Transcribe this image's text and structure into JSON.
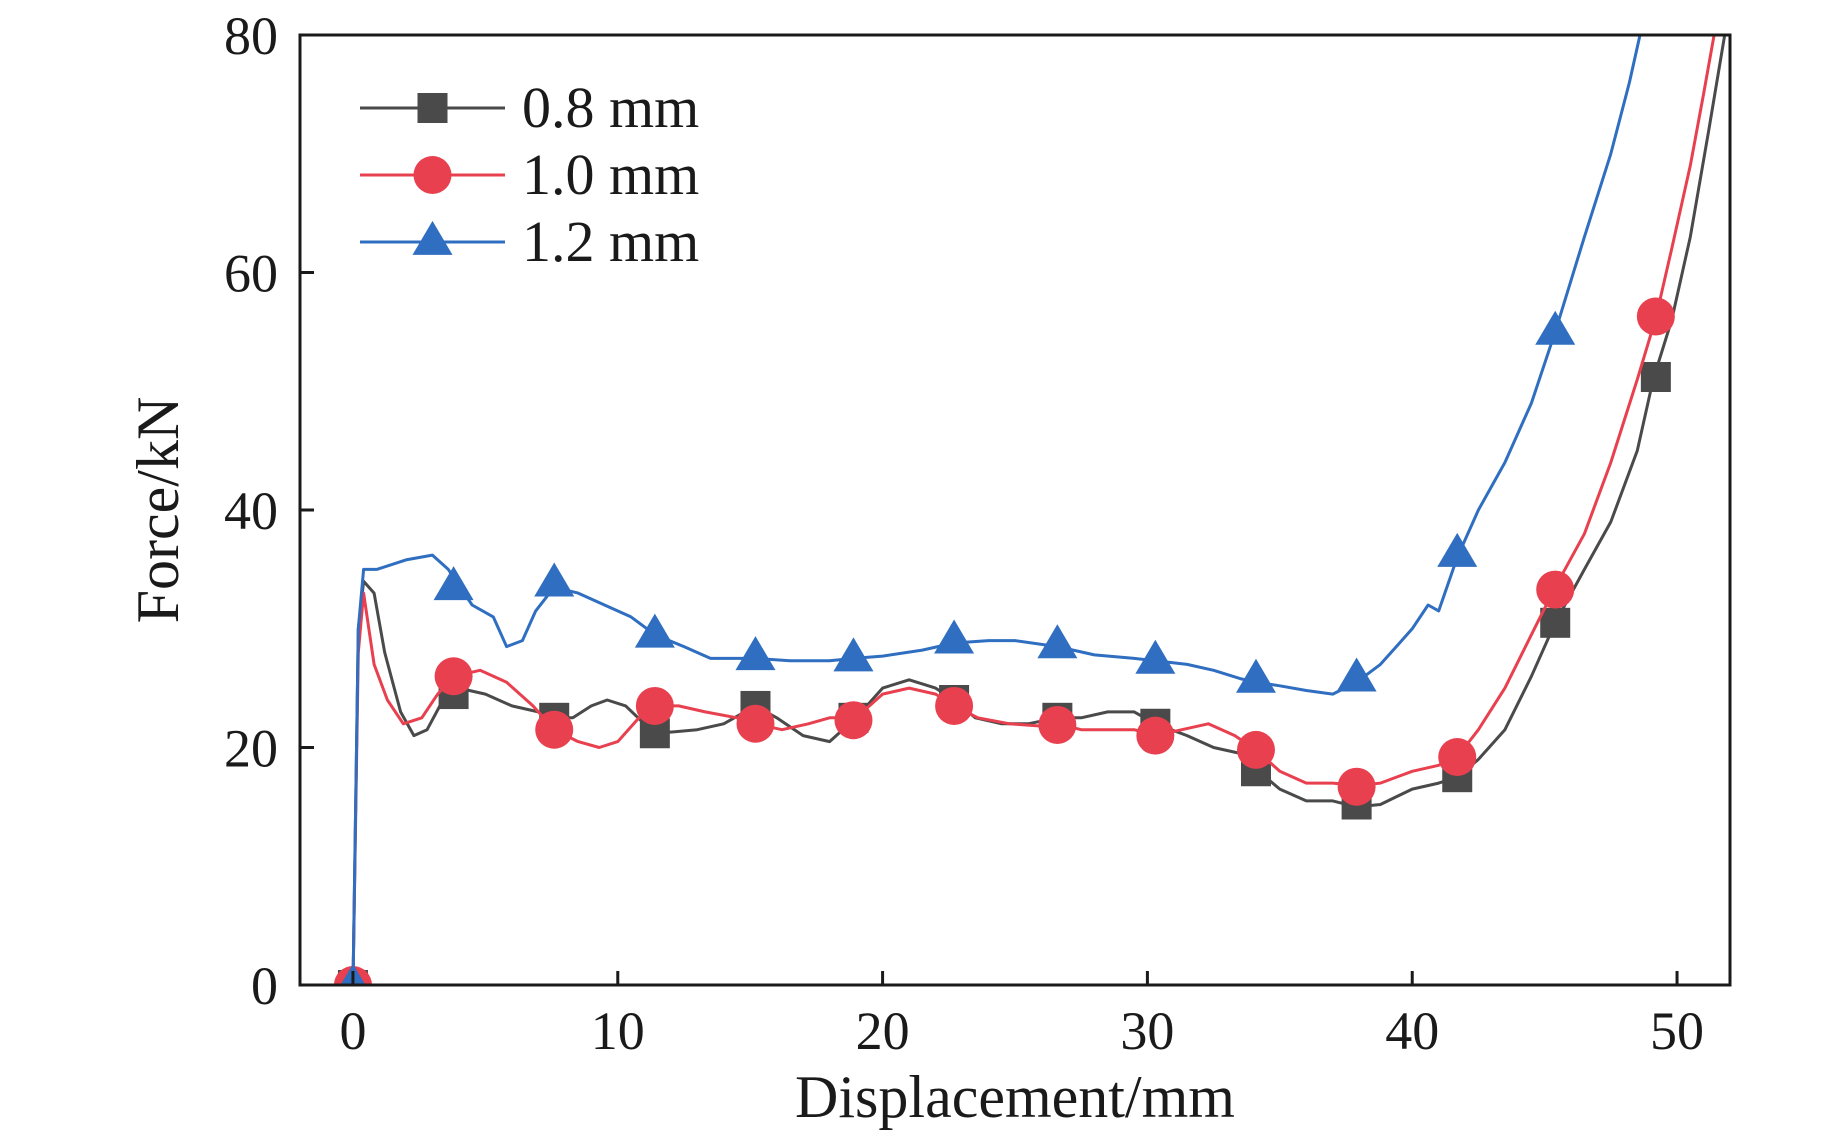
{
  "chart_data": {
    "type": "line",
    "title": "",
    "xlabel": "Displacement/mm",
    "ylabel": "Force/kN",
    "xlim": [
      -2,
      52
    ],
    "ylim": [
      0,
      80
    ],
    "xticks": [
      "0",
      "10",
      "20",
      "30",
      "40",
      "50"
    ],
    "yticks": [
      "0",
      "20",
      "40",
      "60",
      "80"
    ],
    "grid": false,
    "legend_position": "top-left",
    "series": [
      {
        "name": "0.8 mm",
        "color": "#4a4a4a",
        "marker": "square",
        "line": [
          [
            0,
            0
          ],
          [
            0.2,
            30
          ],
          [
            0.4,
            34
          ],
          [
            0.8,
            33
          ],
          [
            1.2,
            28
          ],
          [
            1.8,
            23
          ],
          [
            2.3,
            21
          ],
          [
            2.8,
            21.5
          ],
          [
            3.4,
            24
          ],
          [
            4.0,
            25
          ],
          [
            5.0,
            24.5
          ],
          [
            6.0,
            23.5
          ],
          [
            7.0,
            23
          ],
          [
            7.6,
            22.5
          ],
          [
            8.3,
            22.5
          ],
          [
            9.0,
            23.5
          ],
          [
            9.6,
            24
          ],
          [
            10.3,
            23.5
          ],
          [
            11.0,
            22
          ],
          [
            11.4,
            21.5
          ],
          [
            12.0,
            21.3
          ],
          [
            13.0,
            21.5
          ],
          [
            14.0,
            22
          ],
          [
            15.2,
            23.5
          ],
          [
            16.0,
            22.5
          ],
          [
            17.0,
            21
          ],
          [
            18.0,
            20.5
          ],
          [
            19.0,
            22.5
          ],
          [
            20.0,
            25
          ],
          [
            21.0,
            25.7
          ],
          [
            22.0,
            25
          ],
          [
            22.7,
            24
          ],
          [
            23.5,
            22.5
          ],
          [
            24.5,
            22
          ],
          [
            25.5,
            22
          ],
          [
            26.6,
            22.5
          ],
          [
            27.5,
            22.5
          ],
          [
            28.5,
            23
          ],
          [
            29.5,
            23
          ],
          [
            30.3,
            22
          ],
          [
            31.5,
            21
          ],
          [
            32.5,
            20
          ],
          [
            33.5,
            19.5
          ],
          [
            34.2,
            18
          ],
          [
            35.0,
            16.5
          ],
          [
            36.0,
            15.5
          ],
          [
            37.0,
            15.5
          ],
          [
            37.9,
            15
          ],
          [
            38.8,
            15.2
          ],
          [
            40.0,
            16.5
          ],
          [
            41.0,
            17
          ],
          [
            41.7,
            17.5
          ],
          [
            42.5,
            19
          ],
          [
            43.5,
            21.5
          ],
          [
            44.5,
            26
          ],
          [
            45.4,
            30.5
          ],
          [
            46.5,
            35
          ],
          [
            47.5,
            39
          ],
          [
            48.5,
            45
          ],
          [
            49.1,
            51
          ],
          [
            49.8,
            56
          ],
          [
            50.5,
            63
          ],
          [
            51.2,
            72
          ],
          [
            51.8,
            80
          ]
        ],
        "markers": [
          [
            0,
            0
          ],
          [
            3.8,
            24.5
          ],
          [
            7.6,
            22.5
          ],
          [
            11.4,
            21.2
          ],
          [
            15.2,
            23.5
          ],
          [
            18.9,
            22.5
          ],
          [
            22.7,
            24
          ],
          [
            26.6,
            22.5
          ],
          [
            30.3,
            22
          ],
          [
            34.1,
            18
          ],
          [
            37.9,
            15.2
          ],
          [
            41.7,
            17.5
          ],
          [
            45.4,
            30.5
          ],
          [
            49.2,
            51.2
          ]
        ]
      },
      {
        "name": "1.0 mm",
        "color": "#e8404f",
        "marker": "circle",
        "line": [
          [
            0,
            0
          ],
          [
            0.2,
            28
          ],
          [
            0.4,
            33
          ],
          [
            0.8,
            27
          ],
          [
            1.3,
            24
          ],
          [
            1.9,
            22
          ],
          [
            2.6,
            22.5
          ],
          [
            3.2,
            24.5
          ],
          [
            3.8,
            26
          ],
          [
            4.8,
            26.5
          ],
          [
            5.8,
            25.5
          ],
          [
            6.8,
            23.5
          ],
          [
            7.6,
            21.5
          ],
          [
            8.5,
            20.5
          ],
          [
            9.3,
            20
          ],
          [
            10.0,
            20.5
          ],
          [
            10.8,
            22.5
          ],
          [
            11.4,
            23.5
          ],
          [
            12.3,
            23.5
          ],
          [
            13.3,
            23
          ],
          [
            14.5,
            22.5
          ],
          [
            15.2,
            22
          ],
          [
            16.2,
            21.5
          ],
          [
            17.2,
            22
          ],
          [
            18.0,
            22.5
          ],
          [
            19.0,
            22.5
          ],
          [
            20.0,
            24.5
          ],
          [
            21.0,
            25
          ],
          [
            22.0,
            24.5
          ],
          [
            22.7,
            23.5
          ],
          [
            23.6,
            22.5
          ],
          [
            24.8,
            22
          ],
          [
            26.0,
            21.8
          ],
          [
            26.6,
            22
          ],
          [
            27.5,
            21.5
          ],
          [
            28.5,
            21.5
          ],
          [
            29.5,
            21.5
          ],
          [
            30.3,
            21
          ],
          [
            31.3,
            21.5
          ],
          [
            32.3,
            22
          ],
          [
            33.3,
            21
          ],
          [
            34.1,
            19.8
          ],
          [
            35.0,
            18
          ],
          [
            36.0,
            17
          ],
          [
            37.0,
            17
          ],
          [
            37.9,
            16.8
          ],
          [
            38.8,
            17
          ],
          [
            40.0,
            18
          ],
          [
            41.0,
            18.5
          ],
          [
            41.7,
            19.2
          ],
          [
            42.5,
            21.5
          ],
          [
            43.5,
            25
          ],
          [
            44.5,
            29.5
          ],
          [
            45.4,
            33.5
          ],
          [
            46.5,
            38
          ],
          [
            47.5,
            44
          ],
          [
            48.5,
            51
          ],
          [
            49.2,
            56.2
          ],
          [
            49.8,
            62
          ],
          [
            50.5,
            69
          ],
          [
            51.0,
            75
          ],
          [
            51.4,
            80
          ]
        ],
        "markers": [
          [
            0,
            0
          ],
          [
            3.8,
            26
          ],
          [
            7.6,
            21.5
          ],
          [
            11.4,
            23.5
          ],
          [
            15.2,
            22
          ],
          [
            18.9,
            22.3
          ],
          [
            22.7,
            23.5
          ],
          [
            26.6,
            21.9
          ],
          [
            30.3,
            21
          ],
          [
            34.1,
            19.8
          ],
          [
            37.9,
            16.7
          ],
          [
            41.7,
            19.2
          ],
          [
            45.4,
            33.3
          ],
          [
            49.2,
            56.3
          ]
        ]
      },
      {
        "name": "1.2 mm",
        "color": "#2f6ec0",
        "marker": "triangle",
        "line": [
          [
            0,
            0
          ],
          [
            0.2,
            30
          ],
          [
            0.4,
            35
          ],
          [
            0.9,
            35
          ],
          [
            2.0,
            35.8
          ],
          [
            3.0,
            36.2
          ],
          [
            3.6,
            35
          ],
          [
            4.5,
            32
          ],
          [
            5.3,
            31
          ],
          [
            5.8,
            28.5
          ],
          [
            6.4,
            29
          ],
          [
            6.9,
            31.5
          ],
          [
            7.6,
            33.5
          ],
          [
            8.5,
            33
          ],
          [
            9.5,
            32
          ],
          [
            10.5,
            31
          ],
          [
            11.4,
            29.5
          ],
          [
            12.5,
            28.5
          ],
          [
            13.5,
            27.5
          ],
          [
            15.2,
            27.5
          ],
          [
            16.5,
            27.3
          ],
          [
            18.0,
            27.3
          ],
          [
            18.9,
            27.5
          ],
          [
            20.0,
            27.7
          ],
          [
            21.5,
            28.2
          ],
          [
            22.7,
            28.8
          ],
          [
            24.0,
            29
          ],
          [
            25.0,
            29
          ],
          [
            26.6,
            28.5
          ],
          [
            28.0,
            27.8
          ],
          [
            29.5,
            27.5
          ],
          [
            30.3,
            27.3
          ],
          [
            31.5,
            27
          ],
          [
            32.5,
            26.5
          ],
          [
            33.5,
            25.8
          ],
          [
            34.1,
            25.5
          ],
          [
            35.0,
            25.2
          ],
          [
            36.0,
            24.8
          ],
          [
            37.0,
            24.5
          ],
          [
            37.9,
            25.5
          ],
          [
            38.8,
            27
          ],
          [
            40.0,
            30
          ],
          [
            40.6,
            32
          ],
          [
            41.0,
            31.5
          ],
          [
            41.7,
            36
          ],
          [
            42.5,
            40
          ],
          [
            43.5,
            44
          ],
          [
            44.5,
            49
          ],
          [
            45.4,
            55
          ],
          [
            46.5,
            63
          ],
          [
            47.5,
            70
          ],
          [
            48.2,
            76
          ],
          [
            48.6,
            80
          ]
        ],
        "markers": [
          [
            0,
            0
          ],
          [
            3.8,
            33.5
          ],
          [
            7.6,
            33.8
          ],
          [
            11.4,
            29.5
          ],
          [
            15.2,
            27.6
          ],
          [
            18.9,
            27.5
          ],
          [
            22.7,
            29
          ],
          [
            26.6,
            28.6
          ],
          [
            30.3,
            27.3
          ],
          [
            34.1,
            25.7
          ],
          [
            37.9,
            25.8
          ],
          [
            41.7,
            36.3
          ],
          [
            45.4,
            55
          ]
        ]
      }
    ]
  }
}
